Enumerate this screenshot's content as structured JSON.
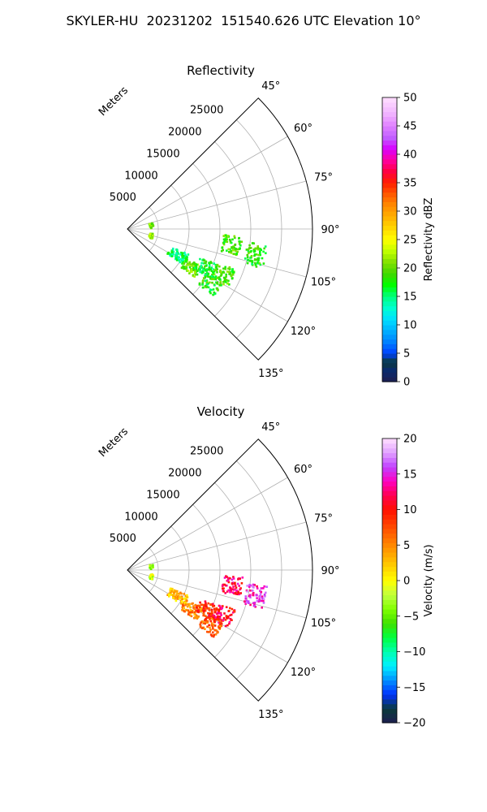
{
  "suptitle": "SKYLER-HU  20231202  151540.626 UTC Elevation 10°",
  "chart_data": [
    {
      "type": "heatmap",
      "title": "Reflectivity",
      "r_label": "Meters",
      "r_ticks": [
        "5000",
        "10000",
        "15000",
        "20000",
        "25000"
      ],
      "r_tick_values": [
        5000,
        10000,
        15000,
        20000,
        25000
      ],
      "r_max": 30000,
      "theta_range": [
        45,
        135
      ],
      "theta_ticks": [
        "45°",
        "60°",
        "75°",
        "90°",
        "105°",
        "120°",
        "135°"
      ],
      "theta_tick_values": [
        45,
        60,
        75,
        90,
        105,
        120,
        135
      ],
      "grid": true,
      "colorbar": {
        "label": "Reflectivity dBZ",
        "range": [
          0,
          50
        ],
        "ticks": [
          "0",
          "5",
          "10",
          "15",
          "20",
          "25",
          "30",
          "35",
          "40",
          "45",
          "50"
        ],
        "tick_values": [
          0,
          5,
          10,
          15,
          20,
          25,
          30,
          35,
          40,
          45,
          50
        ]
      },
      "echoes": [
        {
          "azimuth": 101,
          "range_m": 21000,
          "value": 18
        },
        {
          "azimuth": 98,
          "range_m": 17000,
          "value": 19
        },
        {
          "azimuth": 117,
          "range_m": 9000,
          "value": 15
        },
        {
          "azimuth": 121,
          "range_m": 12000,
          "value": 20
        },
        {
          "azimuth": 116,
          "range_m": 14000,
          "value": 17
        },
        {
          "azimuth": 123,
          "range_m": 16000,
          "value": 18
        },
        {
          "azimuth": 115,
          "range_m": 17000,
          "value": 19
        },
        {
          "azimuth": 80,
          "range_m": 3800,
          "value": 21
        },
        {
          "azimuth": 104,
          "range_m": 3800,
          "value": 22
        }
      ]
    },
    {
      "type": "heatmap",
      "title": "Velocity",
      "r_label": "Meters",
      "r_ticks": [
        "5000",
        "10000",
        "15000",
        "20000",
        "25000"
      ],
      "r_tick_values": [
        5000,
        10000,
        15000,
        20000,
        25000
      ],
      "r_max": 30000,
      "theta_range": [
        45,
        135
      ],
      "theta_ticks": [
        "45°",
        "60°",
        "75°",
        "90°",
        "105°",
        "120°",
        "135°"
      ],
      "theta_tick_values": [
        45,
        60,
        75,
        90,
        105,
        120,
        135
      ],
      "grid": true,
      "colorbar": {
        "label": "Velocity (m/s)",
        "range": [
          -20,
          20
        ],
        "ticks": [
          "−20",
          "−15",
          "−10",
          "−5",
          "0",
          "5",
          "10",
          "15",
          "20"
        ],
        "tick_values": [
          -20,
          -15,
          -10,
          -5,
          0,
          5,
          10,
          15,
          20
        ]
      },
      "echoes": [
        {
          "azimuth": 101,
          "range_m": 21000,
          "value": 15
        },
        {
          "azimuth": 98,
          "range_m": 17000,
          "value": 12
        },
        {
          "azimuth": 117,
          "range_m": 9000,
          "value": 3
        },
        {
          "azimuth": 121,
          "range_m": 12000,
          "value": 5
        },
        {
          "azimuth": 116,
          "range_m": 14000,
          "value": 9
        },
        {
          "azimuth": 123,
          "range_m": 16000,
          "value": 7
        },
        {
          "azimuth": 115,
          "range_m": 17000,
          "value": 11
        },
        {
          "azimuth": 80,
          "range_m": 3800,
          "value": -3
        },
        {
          "azimuth": 104,
          "range_m": 3800,
          "value": -2
        }
      ]
    }
  ]
}
